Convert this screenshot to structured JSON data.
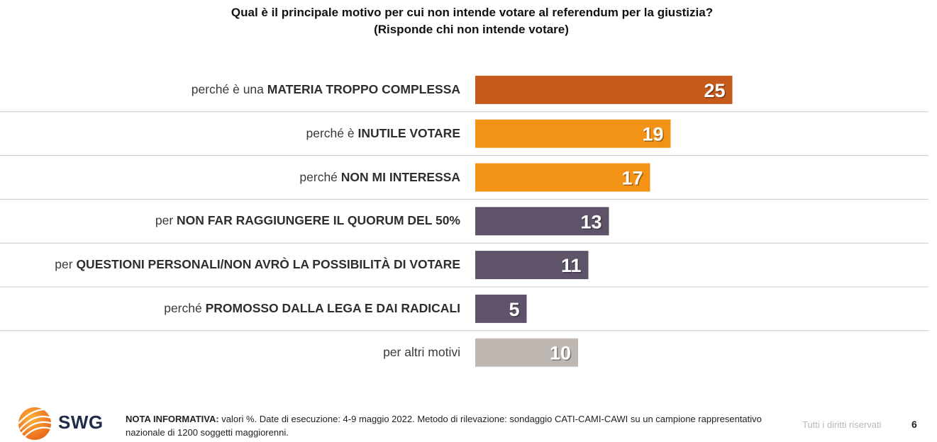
{
  "title": {
    "line1": "Qual è il principale motivo per cui non intende votare al referendum per la giustizia?",
    "line2": "(Risponde chi non intende votare)"
  },
  "chart_data": {
    "type": "bar",
    "orientation": "horizontal",
    "title": "Qual è il principale motivo per cui non intende votare al referendum per la giustizia?",
    "subtitle": "(Risponde chi non intende votare)",
    "categories": [
      "perché è una MATERIA TROPPO COMPLESSA",
      "perché è INUTILE VOTARE",
      "perché NON MI INTERESSA",
      "per NON FAR RAGGIUNGERE IL QUORUM DEL 50%",
      "per QUESTIONI PERSONALI/NON AVRÒ LA POSSIBILITÀ DI VOTARE",
      "perché PROMOSSO DALLA LEGA E DAI RADICALI",
      "per altri motivi"
    ],
    "label_parts": [
      {
        "prefix": "perché è una ",
        "bold": "MATERIA TROPPO COMPLESSA"
      },
      {
        "prefix": "perché è ",
        "bold": "INUTILE VOTARE"
      },
      {
        "prefix": "perché ",
        "bold": "NON MI INTERESSA"
      },
      {
        "prefix": "per ",
        "bold": "NON FAR RAGGIUNGERE IL QUORUM DEL 50%"
      },
      {
        "prefix": "per ",
        "bold": "QUESTIONI PERSONALI/NON AVRÒ LA POSSIBILITÀ DI VOTARE"
      },
      {
        "prefix": "perché ",
        "bold": "PROMOSSO DALLA LEGA E DAI RADICALI"
      },
      {
        "prefix": "per altri motivi",
        "bold": ""
      }
    ],
    "values": [
      25,
      19,
      17,
      13,
      11,
      5,
      10
    ],
    "colors": [
      "#c55a1a",
      "#f39316",
      "#f39316",
      "#5f5369",
      "#5f5369",
      "#5f5369",
      "#bfb7b1"
    ],
    "xlim": [
      0,
      25
    ],
    "unit": "%",
    "data_labels": true,
    "grid": false,
    "legend": "none"
  },
  "footer": {
    "brand": "SWG",
    "note_label": "NOTA INFORMATIVA:",
    "note_text": " valori %. Date di esecuzione: 4-9 maggio 2022. Metodo di rilevazione: sondaggio CATI-CAMI-CAWI su un campione rappresentativo nazionale di 1200 soggetti maggiorenni.",
    "rights": "Tutti i diritti riservati",
    "page": "6"
  }
}
